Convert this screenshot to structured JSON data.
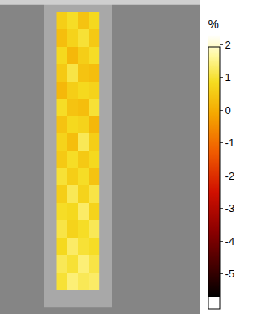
{
  "chart_data": {
    "type": "heatmap",
    "z": [
      [
        1.0,
        1.4,
        1.2,
        1.3
      ],
      [
        1.2,
        1.0,
        1.4,
        1.1
      ],
      [
        0.8,
        1.3,
        1.0,
        0.9
      ],
      [
        1.1,
        0.7,
        0.9,
        1.2
      ],
      [
        0.9,
        0.8,
        1.3,
        0.7
      ],
      [
        0.6,
        1.2,
        0.7,
        1.1
      ],
      [
        1.0,
        0.6,
        0.9,
        0.4
      ],
      [
        0.5,
        0.9,
        0.5,
        0.8
      ],
      [
        0.7,
        0.3,
        1.2,
        0.6
      ],
      [
        0.4,
        0.8,
        0.7,
        0.2
      ],
      [
        0.9,
        0.4,
        0.3,
        1.0
      ],
      [
        0.2,
        0.6,
        0.8,
        0.7
      ],
      [
        0.5,
        1.1,
        0.4,
        0.3
      ],
      [
        0.8,
        0.2,
        0.6,
        0.9
      ],
      [
        0.3,
        0.7,
        1.0,
        0.5
      ],
      [
        0.6,
        0.9,
        0.4,
        0.8
      ]
    ],
    "zlim": [
      -5.7,
      2.3
    ],
    "zticks": [
      2,
      1,
      0,
      -1,
      -2,
      -3,
      -4,
      -5
    ],
    "colorbar_title": "%",
    "tick_labels": false
  }
}
